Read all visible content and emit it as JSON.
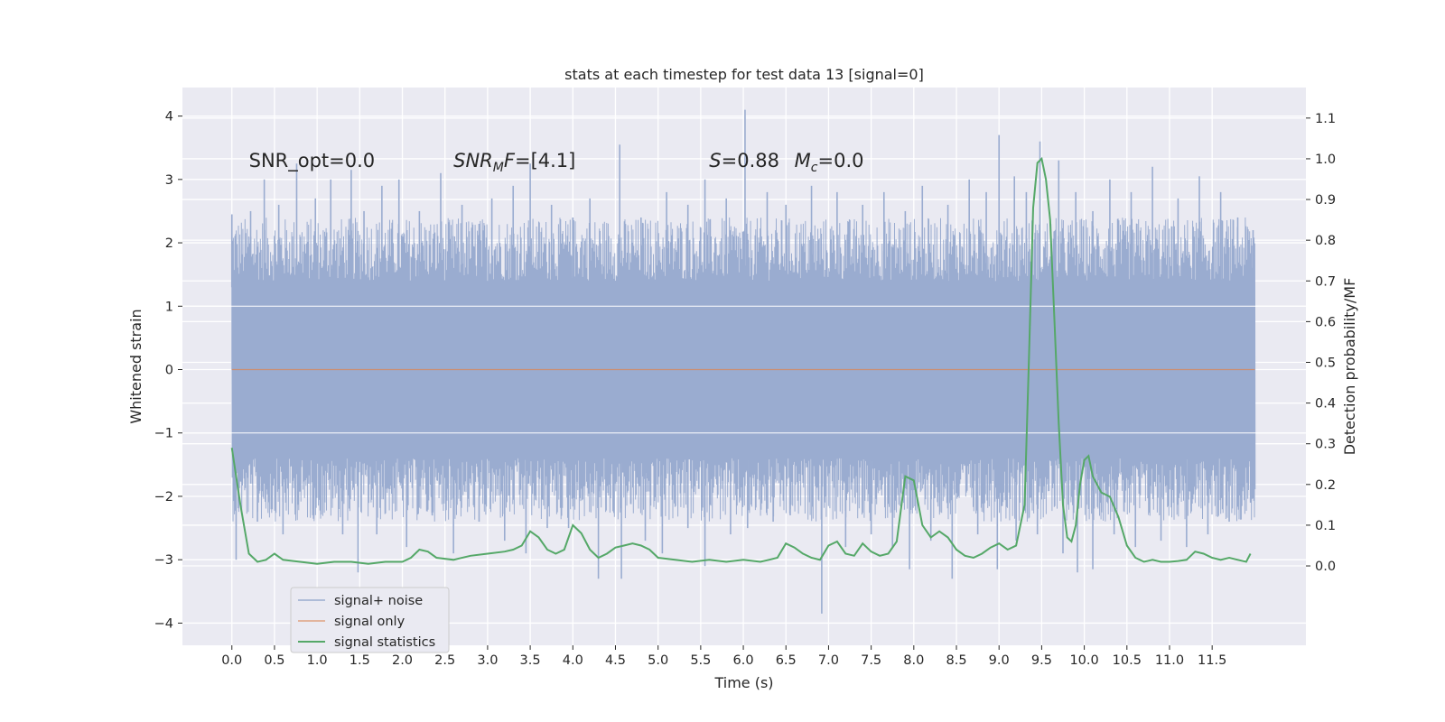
{
  "chart_data": {
    "type": "line",
    "title": "stats at each timestep for test data 13 [signal=0]",
    "xlabel": "Time (s)",
    "ylabel_left": "Whitened strain",
    "ylabel_right": "Detection probability/MF",
    "xlim": [
      -0.58,
      12.6
    ],
    "ylim_left": [
      -4.35,
      4.45
    ],
    "ylim_right": [
      -0.195,
      1.175
    ],
    "x_ticks": [
      0.0,
      0.5,
      1.0,
      1.5,
      2.0,
      2.5,
      3.0,
      3.5,
      4.0,
      4.5,
      5.0,
      5.5,
      6.0,
      6.5,
      7.0,
      7.5,
      8.0,
      8.5,
      9.0,
      9.5,
      10.0,
      10.5,
      11.0,
      11.5
    ],
    "y_ticks_left": [
      -4,
      -3,
      -2,
      -1,
      0,
      1,
      2,
      3,
      4
    ],
    "y_ticks_right": [
      0.0,
      0.1,
      0.2,
      0.3,
      0.4,
      0.5,
      0.6,
      0.7,
      0.8,
      0.9,
      1.0,
      1.1
    ],
    "grid": true,
    "legend_position": "lower-left",
    "annotations": [
      {
        "text_main": "SNR_opt=0.0",
        "x": 0.2,
        "y": 3.3
      },
      {
        "text_main": "SNR",
        "sub": "M",
        "text_after": "F=[4.1]",
        "italic_part": true,
        "x": 2.6,
        "y": 3.3
      },
      {
        "text_main": "S",
        "text_after": "=0.88",
        "x": 5.6,
        "y": 3.3
      },
      {
        "text_main": "M",
        "sub": "c",
        "text_after": "=0.0",
        "x": 6.6,
        "y": 3.3
      }
    ],
    "series": [
      {
        "name": "signal+ noise",
        "color": "#9aacd0",
        "axis": "left",
        "t_range": [
          0.0,
          12.0
        ],
        "envelope_inner": [
          -1.35,
          1.35
        ],
        "spikes_high": [
          [
            0.0,
            2.45
          ],
          [
            0.22,
            2.5
          ],
          [
            0.38,
            3.0
          ],
          [
            0.55,
            2.6
          ],
          [
            0.76,
            3.25
          ],
          [
            0.98,
            2.7
          ],
          [
            1.16,
            3.0
          ],
          [
            1.4,
            3.15
          ],
          [
            1.55,
            2.5
          ],
          [
            1.76,
            2.9
          ],
          [
            1.96,
            3.0
          ],
          [
            2.2,
            2.5
          ],
          [
            2.45,
            3.1
          ],
          [
            2.7,
            2.6
          ],
          [
            2.9,
            2.3
          ],
          [
            3.05,
            2.7
          ],
          [
            3.3,
            2.9
          ],
          [
            3.5,
            3.25
          ],
          [
            3.75,
            2.6
          ],
          [
            4.0,
            2.4
          ],
          [
            4.2,
            2.7
          ],
          [
            4.55,
            3.55
          ],
          [
            4.8,
            2.4
          ],
          [
            5.1,
            2.8
          ],
          [
            5.35,
            2.6
          ],
          [
            5.55,
            3.0
          ],
          [
            5.8,
            2.7
          ],
          [
            6.02,
            4.1
          ],
          [
            6.28,
            2.8
          ],
          [
            6.5,
            2.6
          ],
          [
            6.8,
            2.9
          ],
          [
            7.1,
            2.8
          ],
          [
            7.4,
            2.6
          ],
          [
            7.65,
            2.8
          ],
          [
            7.9,
            2.5
          ],
          [
            8.1,
            2.9
          ],
          [
            8.4,
            2.6
          ],
          [
            8.65,
            3.0
          ],
          [
            8.85,
            2.8
          ],
          [
            9.0,
            3.7
          ],
          [
            9.18,
            3.05
          ],
          [
            9.32,
            2.8
          ],
          [
            9.48,
            3.6
          ],
          [
            9.7,
            3.3
          ],
          [
            9.9,
            2.8
          ],
          [
            10.1,
            2.5
          ],
          [
            10.3,
            3.0
          ],
          [
            10.55,
            2.8
          ],
          [
            10.8,
            3.2
          ],
          [
            11.1,
            2.7
          ],
          [
            11.35,
            3.05
          ],
          [
            11.6,
            2.8
          ],
          [
            11.8,
            2.4
          ],
          [
            11.98,
            2.2
          ]
        ],
        "spikes_low": [
          [
            0.05,
            -3.0
          ],
          [
            0.3,
            -2.4
          ],
          [
            0.6,
            -2.6
          ],
          [
            0.95,
            -2.2
          ],
          [
            1.3,
            -2.6
          ],
          [
            1.48,
            -3.2
          ],
          [
            1.7,
            -2.6
          ],
          [
            2.05,
            -2.8
          ],
          [
            2.35,
            -2.3
          ],
          [
            2.6,
            -2.9
          ],
          [
            2.9,
            -2.4
          ],
          [
            3.2,
            -2.7
          ],
          [
            3.45,
            -2.9
          ],
          [
            3.7,
            -2.5
          ],
          [
            3.95,
            -2.5
          ],
          [
            4.3,
            -3.3
          ],
          [
            4.57,
            -3.3
          ],
          [
            4.85,
            -2.7
          ],
          [
            5.05,
            -2.9
          ],
          [
            5.35,
            -2.5
          ],
          [
            5.55,
            -3.1
          ],
          [
            5.85,
            -2.6
          ],
          [
            6.05,
            -2.5
          ],
          [
            6.35,
            -2.4
          ],
          [
            6.55,
            -2.3
          ],
          [
            6.92,
            -3.85
          ],
          [
            7.2,
            -2.8
          ],
          [
            7.5,
            -2.6
          ],
          [
            7.75,
            -2.8
          ],
          [
            7.95,
            -3.15
          ],
          [
            8.2,
            -2.7
          ],
          [
            8.45,
            -3.3
          ],
          [
            8.75,
            -2.6
          ],
          [
            8.98,
            -3.15
          ],
          [
            9.2,
            -2.7
          ],
          [
            9.45,
            -2.6
          ],
          [
            9.75,
            -2.9
          ],
          [
            9.92,
            -3.2
          ],
          [
            10.1,
            -3.15
          ],
          [
            10.35,
            -2.6
          ],
          [
            10.6,
            -2.8
          ],
          [
            10.9,
            -2.7
          ],
          [
            11.2,
            -2.8
          ],
          [
            11.45,
            -2.6
          ],
          [
            11.7,
            -2.4
          ],
          [
            11.95,
            -2.1
          ]
        ]
      },
      {
        "name": "signal only",
        "color": "#dd8452",
        "axis": "left",
        "x": [
          0.0,
          12.0
        ],
        "y": [
          0.0,
          0.0
        ]
      },
      {
        "name": "signal statistics",
        "color": "#55a868",
        "axis": "right",
        "x": [
          0.0,
          0.1,
          0.2,
          0.3,
          0.4,
          0.5,
          0.6,
          0.8,
          1.0,
          1.2,
          1.4,
          1.6,
          1.8,
          2.0,
          2.1,
          2.2,
          2.3,
          2.4,
          2.6,
          2.8,
          3.0,
          3.2,
          3.3,
          3.4,
          3.5,
          3.6,
          3.7,
          3.8,
          3.9,
          4.0,
          4.1,
          4.2,
          4.3,
          4.4,
          4.5,
          4.6,
          4.7,
          4.8,
          4.9,
          5.0,
          5.2,
          5.4,
          5.6,
          5.8,
          6.0,
          6.2,
          6.3,
          6.4,
          6.5,
          6.6,
          6.7,
          6.8,
          6.9,
          7.0,
          7.1,
          7.2,
          7.3,
          7.4,
          7.5,
          7.6,
          7.7,
          7.8,
          7.9,
          8.0,
          8.1,
          8.2,
          8.3,
          8.4,
          8.5,
          8.6,
          8.7,
          8.8,
          8.9,
          9.0,
          9.1,
          9.2,
          9.3,
          9.35,
          9.4,
          9.45,
          9.5,
          9.55,
          9.6,
          9.65,
          9.7,
          9.75,
          9.8,
          9.85,
          9.9,
          9.95,
          10.0,
          10.05,
          10.1,
          10.2,
          10.3,
          10.4,
          10.5,
          10.6,
          10.7,
          10.8,
          10.9,
          11.0,
          11.1,
          11.2,
          11.3,
          11.4,
          11.5,
          11.6,
          11.7,
          11.8,
          11.9,
          11.95
        ],
        "y": [
          0.29,
          0.15,
          0.03,
          0.01,
          0.015,
          0.03,
          0.015,
          0.01,
          0.005,
          0.01,
          0.01,
          0.005,
          0.01,
          0.01,
          0.02,
          0.04,
          0.035,
          0.02,
          0.015,
          0.025,
          0.03,
          0.035,
          0.04,
          0.05,
          0.085,
          0.07,
          0.04,
          0.03,
          0.04,
          0.1,
          0.08,
          0.04,
          0.02,
          0.03,
          0.045,
          0.05,
          0.055,
          0.05,
          0.04,
          0.02,
          0.015,
          0.01,
          0.015,
          0.01,
          0.015,
          0.01,
          0.015,
          0.02,
          0.055,
          0.045,
          0.03,
          0.02,
          0.015,
          0.05,
          0.06,
          0.03,
          0.025,
          0.055,
          0.035,
          0.025,
          0.03,
          0.06,
          0.22,
          0.21,
          0.1,
          0.07,
          0.085,
          0.07,
          0.04,
          0.025,
          0.02,
          0.03,
          0.045,
          0.055,
          0.04,
          0.05,
          0.15,
          0.5,
          0.88,
          0.99,
          1.0,
          0.95,
          0.85,
          0.6,
          0.35,
          0.15,
          0.07,
          0.06,
          0.1,
          0.2,
          0.26,
          0.27,
          0.22,
          0.18,
          0.17,
          0.12,
          0.05,
          0.02,
          0.01,
          0.015,
          0.01,
          0.01,
          0.012,
          0.015,
          0.035,
          0.03,
          0.02,
          0.015,
          0.02,
          0.015,
          0.01,
          0.03
        ]
      }
    ]
  }
}
